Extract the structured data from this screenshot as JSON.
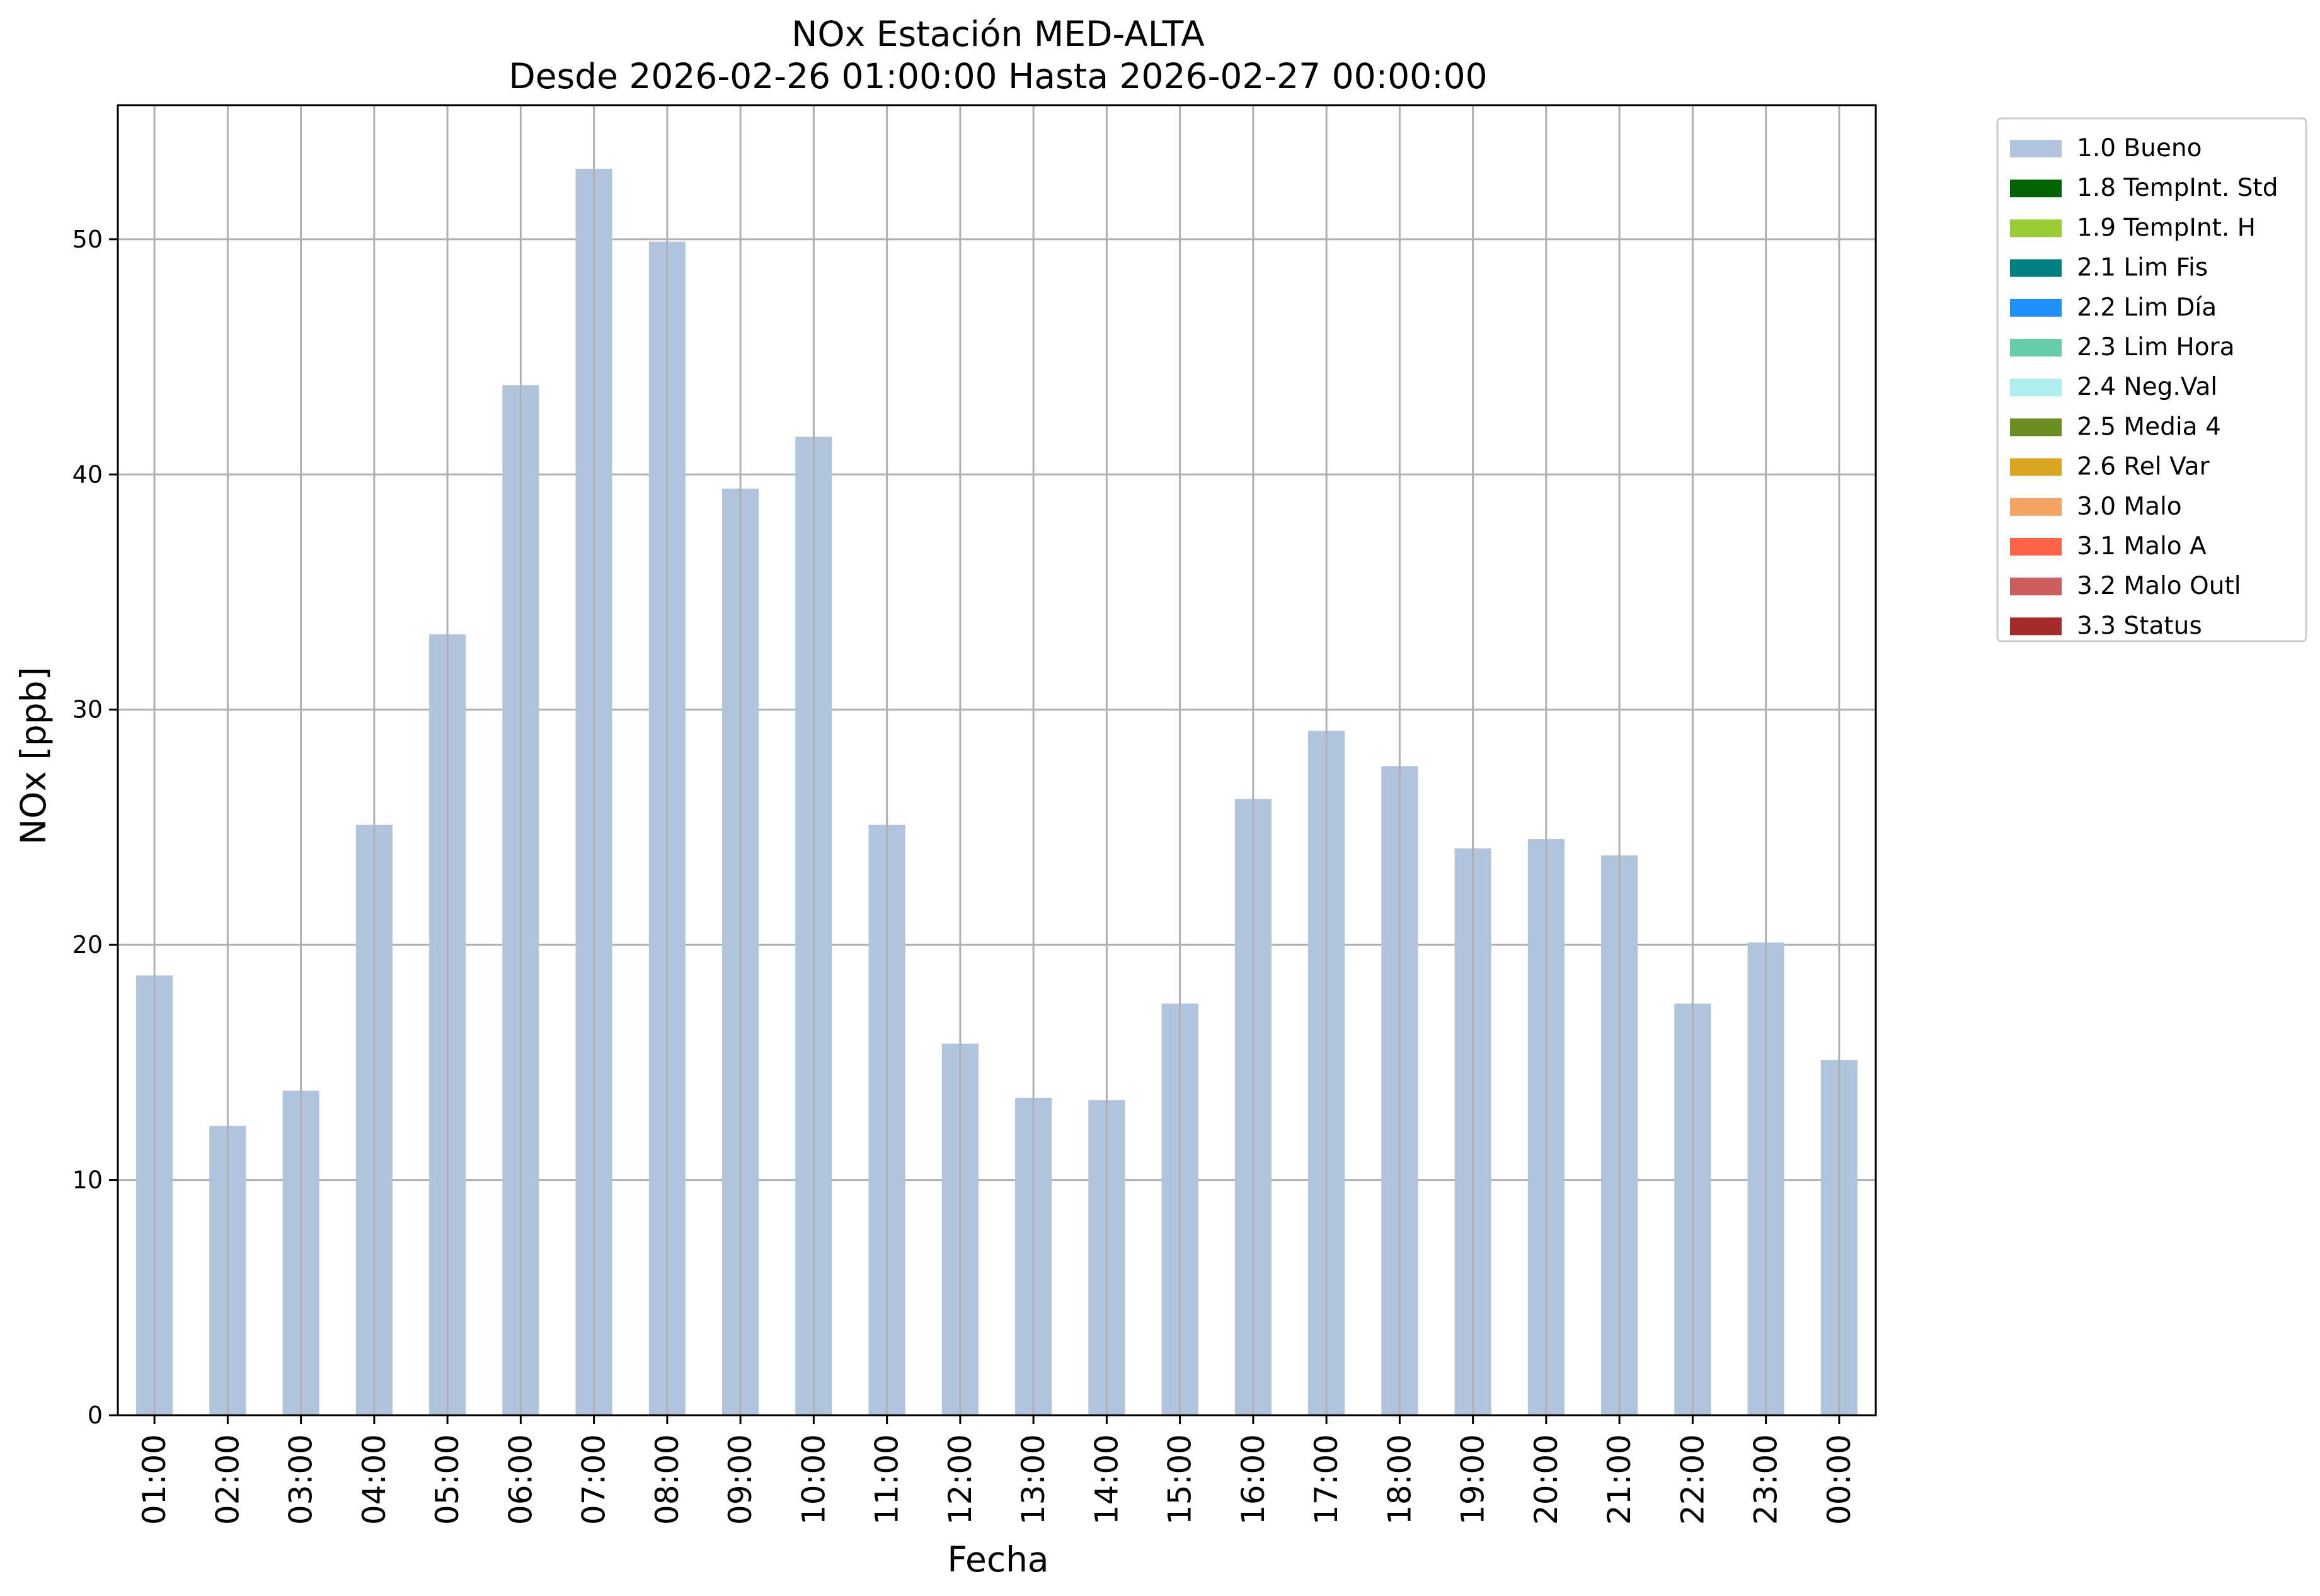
{
  "chart_data": {
    "type": "bar",
    "title": "NOx Estación MED-ALTA",
    "subtitle": "Desde 2026-02-26 01:00:00 Hasta 2026-02-27 00:00:00",
    "xlabel": "Fecha",
    "ylabel": "NOx [ppb]",
    "ylim": [
      0,
      55.7
    ],
    "yticks": [
      0,
      10,
      20,
      30,
      40,
      50
    ],
    "grid": true,
    "legend_position": "outside-top-right",
    "categories": [
      "01:00",
      "02:00",
      "03:00",
      "04:00",
      "05:00",
      "06:00",
      "07:00",
      "08:00",
      "09:00",
      "10:00",
      "11:00",
      "12:00",
      "13:00",
      "14:00",
      "15:00",
      "16:00",
      "17:00",
      "18:00",
      "19:00",
      "20:00",
      "21:00",
      "22:00",
      "23:00",
      "00:00"
    ],
    "series": [
      {
        "name": "1.0 Bueno",
        "color": "#b0c4de",
        "values": [
          18.7,
          12.3,
          13.8,
          25.1,
          33.2,
          43.8,
          53.0,
          49.9,
          39.4,
          41.6,
          25.1,
          15.8,
          13.5,
          13.4,
          17.5,
          26.2,
          29.1,
          27.6,
          24.1,
          24.5,
          23.8,
          17.5,
          20.1,
          15.1
        ]
      }
    ],
    "legend": [
      {
        "label": "1.0 Bueno",
        "color": "#b0c4de"
      },
      {
        "label": "1.8 TempInt. Std",
        "color": "#006400"
      },
      {
        "label": "1.9 TempInt. H",
        "color": "#9acd32"
      },
      {
        "label": "2.1 Lim Fis",
        "color": "#008080"
      },
      {
        "label": "2.2 Lim Día",
        "color": "#1e90ff"
      },
      {
        "label": "2.3 Lim Hora",
        "color": "#66cdaa"
      },
      {
        "label": "2.4 Neg.Val",
        "color": "#afeeee"
      },
      {
        "label": "2.5 Media 4",
        "color": "#6b8e23"
      },
      {
        "label": "2.6 Rel Var",
        "color": "#daa520"
      },
      {
        "label": "3.0 Malo",
        "color": "#f4a460"
      },
      {
        "label": "3.1 Malo A",
        "color": "#ff6347"
      },
      {
        "label": "3.2 Malo Outl",
        "color": "#cd5c5c"
      },
      {
        "label": "3.3 Status",
        "color": "#a52a2a"
      }
    ]
  }
}
